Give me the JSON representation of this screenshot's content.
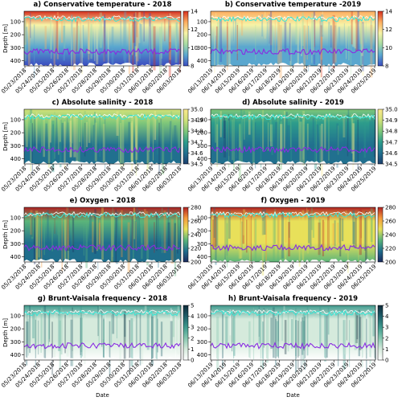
{
  "chart_data": [
    {
      "type": "heatmap",
      "title": "a) Conservative temperature - 2018",
      "ylabel": "Depth [m]",
      "categories": [
        "05/23/2018",
        "05/24/2018",
        "05/25/2018",
        "05/26/2018",
        "05/27/2018",
        "05/28/2018",
        "05/29/2018",
        "05/30/2018",
        "05/31/2018",
        "06/01/2018",
        "06/02/2018",
        "06/03/2018"
      ],
      "ylim": [
        20,
        440
      ],
      "yticks": [
        100,
        200,
        300,
        400
      ],
      "clim": [
        8,
        14
      ],
      "cticks": [
        8,
        10,
        12,
        14
      ],
      "colormap": [
        "#3b4cc0",
        "#5aa7cf",
        "#a7dca4",
        "#f7f3a6",
        "#fdae61",
        "#d7301f"
      ]
    },
    {
      "type": "heatmap",
      "title": "b) Conservative temperature -2019",
      "categories": [
        "06/13/2019",
        "06/14/2019",
        "06/15/2019",
        "06/16/2019",
        "06/17/2019",
        "06/18/2019",
        "06/19/2019",
        "06/20/2019",
        "06/21/2019",
        "06/22/2019",
        "06/23/2019",
        "06/24/2019",
        "06/25/2019"
      ],
      "ylim": [
        20,
        440
      ],
      "yticks": [
        100,
        200,
        300,
        400
      ],
      "clim": [
        8,
        14
      ],
      "cticks": [
        8,
        10,
        12,
        14
      ],
      "colormap": [
        "#3b4cc0",
        "#5aa7cf",
        "#a7dca4",
        "#f7f3a6",
        "#fdae61",
        "#d7301f"
      ]
    },
    {
      "type": "heatmap",
      "title": "c) Absolute salinity - 2018",
      "ylabel": "Depth [m]",
      "categories": [
        "05/23/2018",
        "05/24/2018",
        "05/25/2018",
        "05/26/2018",
        "05/27/2018",
        "05/28/2018",
        "05/29/2018",
        "05/30/2018",
        "05/31/2018",
        "06/01/2018",
        "06/02/2018",
        "06/03/2018"
      ],
      "ylim": [
        20,
        440
      ],
      "yticks": [
        100,
        200,
        300,
        400
      ],
      "clim": [
        34.5,
        35
      ],
      "cticks": [
        34.5,
        34.6,
        34.7,
        34.8,
        34.9,
        {
          "value": 35,
          "label": "35.0"
        }
      ],
      "colormap": [
        "#1d3f6e",
        "#21708f",
        "#2d9c8b",
        "#7fc77a",
        "#d0e27a",
        "#fbe98c"
      ]
    },
    {
      "type": "heatmap",
      "title": "d) Absolute salinity - 2019",
      "categories": [
        "06/13/2019",
        "06/14/2019",
        "06/15/2019",
        "06/16/2019",
        "06/17/2019",
        "06/18/2019",
        "06/19/2019",
        "06/20/2019",
        "06/21/2019",
        "06/22/2019",
        "06/23/2019",
        "06/24/2019",
        "06/25/2019"
      ],
      "ylim": [
        20,
        440
      ],
      "yticks": [
        100,
        200,
        300,
        400
      ],
      "clim": [
        34.5,
        35
      ],
      "cticks": [
        34.5,
        34.6,
        34.7,
        34.8,
        34.9,
        {
          "value": 35,
          "label": "35.0"
        }
      ],
      "colormap": [
        "#1d3f6e",
        "#21708f",
        "#2d9c8b",
        "#7fc77a",
        "#d0e27a",
        "#fbe98c"
      ]
    },
    {
      "type": "heatmap",
      "title": "e) Oxygen - 2018",
      "ylabel": "Depth [m]",
      "categories": [
        "05/23/2018",
        "05/24/2018",
        "05/25/2018",
        "05/26/2018",
        "05/27/2018",
        "05/28/2018",
        "05/29/2018",
        "05/30/2018",
        "05/31/2018",
        "06/01/2018",
        "06/02/2018",
        "06/03/2018"
      ],
      "ylim": [
        20,
        440
      ],
      "yticks": [
        100,
        200,
        300,
        400
      ],
      "clim": [
        200,
        280
      ],
      "cticks": [
        200,
        220,
        240,
        260,
        280
      ],
      "colormap": [
        "#1b2a5e",
        "#1f6e8c",
        "#5bb57a",
        "#e8e05a",
        "#f59b3c",
        "#b22222"
      ]
    },
    {
      "type": "heatmap",
      "title": "f) Oxygen - 2019",
      "categories": [
        "06/13/2019",
        "06/14/2019",
        "06/15/2019",
        "06/16/2019",
        "06/17/2019",
        "06/18/2019",
        "06/19/2019",
        "06/20/2019",
        "06/21/2019",
        "06/22/2019",
        "06/23/2019",
        "06/24/2019",
        "06/25/2019"
      ],
      "ylim": [
        20,
        440
      ],
      "yticks": [
        100,
        200,
        300,
        400
      ],
      "clim": [
        200,
        280
      ],
      "cticks": [
        200,
        220,
        240,
        260,
        280
      ],
      "colormap": [
        "#1b2a5e",
        "#1f6e8c",
        "#5bb57a",
        "#e8e05a",
        "#f59b3c",
        "#b22222"
      ]
    },
    {
      "type": "heatmap",
      "title": "g) Brunt-Vaisala frequency - 2018",
      "ylabel": "Depth [m]",
      "xlabel": "Date",
      "categories": [
        "05/23/2018",
        "05/24/2018",
        "05/25/2018",
        "05/26/2018",
        "05/27/2018",
        "05/28/2018",
        "05/29/2018",
        "05/30/2018",
        "05/31/2018",
        "06/01/2018",
        "06/02/2018",
        "06/03/2018"
      ],
      "ylim": [
        20,
        440
      ],
      "yticks": [
        100,
        200,
        300,
        400
      ],
      "clim": [
        0,
        5
      ],
      "cticks": [
        0,
        1,
        2,
        3,
        4,
        5
      ],
      "colormap": [
        "#ffffff",
        "#d5eadc",
        "#86c7b0",
        "#3f9a8e",
        "#1f5f6a",
        "#0f2a3a"
      ]
    },
    {
      "type": "heatmap",
      "title": "h) Brunt-Vaisala frequency - 2019",
      "xlabel": "Date",
      "categories": [
        "06/13/2019",
        "06/14/2019",
        "06/15/2019",
        "06/16/2019",
        "06/17/2019",
        "06/18/2019",
        "06/19/2019",
        "06/20/2019",
        "06/21/2019",
        "06/22/2019",
        "06/23/2019",
        "06/24/2019",
        "06/25/2019"
      ],
      "ylim": [
        20,
        440
      ],
      "yticks": [
        100,
        200,
        300,
        400
      ],
      "clim": [
        0,
        5
      ],
      "cticks": [
        0,
        1,
        2,
        3,
        4,
        5
      ],
      "colormap": [
        "#ffffff",
        "#d5eadc",
        "#86c7b0",
        "#3f9a8e",
        "#1f5f6a",
        "#0f2a3a"
      ]
    }
  ]
}
